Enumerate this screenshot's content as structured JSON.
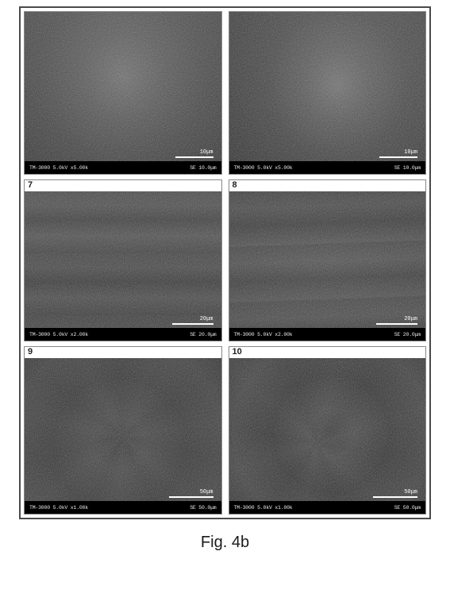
{
  "caption": "Fig. 4b",
  "frame_border_color": "#4a4a4a",
  "background_color": "#ffffff",
  "panels": [
    {
      "row": 1,
      "col": 1,
      "label": "",
      "bg_gradient": "radial-gradient(ellipse 70% 90% at 50% 40%, #6a6a6a 0%, #4e4e4e 30%, #3a3a3a 60%, #2a2a2a 100%)",
      "bg_overlay": "linear-gradient(180deg, rgba(90,90,90,0.25) 0%, rgba(30,30,30,0.2) 100%)",
      "infobar_left": "TM-3000  5.0kV  x5.00k",
      "infobar_right": "SE  10.0μm",
      "scalebar_width": 48,
      "scalebar_text": "10μm"
    },
    {
      "row": 1,
      "col": 2,
      "label": "",
      "bg_gradient": "radial-gradient(ellipse 65% 85% at 55% 45%, #707070 0%, #555 25%, #3c3c3c 55%, #2b2b2b 100%)",
      "bg_overlay": "linear-gradient(200deg, rgba(100,100,100,0.2) 0%, rgba(20,20,20,0.25) 100%)",
      "infobar_left": "TM-3000  5.0kV  x5.00k",
      "infobar_right": "SE  10.0μm",
      "scalebar_width": 48,
      "scalebar_text": "10μm"
    },
    {
      "row": 2,
      "col": 1,
      "label": "7",
      "bg_gradient": "repeating-linear-gradient(180deg, #3c3c3c 0px, #444 18px, #323232 36px, #4a4a4a 56px, #383838 78px)",
      "bg_overlay": "linear-gradient(180deg, rgba(70,70,70,0.15) 0%, rgba(20,20,20,0.3) 100%)",
      "infobar_left": "TM-3000  5.0kV  x2.00k",
      "infobar_right": "SE  20.0μm",
      "scalebar_width": 52,
      "scalebar_text": "20μm"
    },
    {
      "row": 2,
      "col": 2,
      "label": "8",
      "bg_gradient": "repeating-linear-gradient(178deg, #3a3a3a 0px, #464646 22px, #303030 44px, #484848 70px)",
      "bg_overlay": "radial-gradient(ellipse 120% 80% at 50% 50%, rgba(80,80,80,0.2) 0%, rgba(15,15,15,0.3) 100%)",
      "infobar_left": "TM-3000  5.0kV  x2.00k",
      "infobar_right": "SE  20.0μm",
      "scalebar_width": 52,
      "scalebar_text": "20μm"
    },
    {
      "row": 3,
      "col": 1,
      "label": "9",
      "bg_gradient": "radial-gradient(circle at 48% 55%, #2e2e2e 0%, #383838 20%, #2a2a2a 50%, #323232 80%, #262626 100%)",
      "bg_overlay": "repeating-conic-gradient(from 30deg at 50% 50%, rgba(80,80,80,0.12) 0deg, rgba(30,30,30,0.08) 25deg, rgba(70,70,70,0.12) 50deg)",
      "infobar_left": "TM-3000  5.0kV  x1.00k",
      "infobar_right": "SE  50.0μm",
      "scalebar_width": 56,
      "scalebar_text": "50μm"
    },
    {
      "row": 3,
      "col": 2,
      "label": "10",
      "bg_gradient": "radial-gradient(circle at 52% 48%, #303030 0%, #3a3a3a 18%, #282828 45%, #343434 75%, #242424 100%)",
      "bg_overlay": "repeating-conic-gradient(from 10deg at 45% 55%, rgba(85,85,85,0.1) 0deg, rgba(25,25,25,0.1) 30deg, rgba(75,75,75,0.1) 60deg)",
      "infobar_left": "TM-3000  5.0kV  x1.00k",
      "infobar_right": "SE  50.0μm",
      "scalebar_width": 56,
      "scalebar_text": "50μm"
    }
  ],
  "noise_svg": "url(\"data:image/svg+xml;utf8,<svg xmlns='http://www.w3.org/2000/svg' width='120' height='120'><filter id='n'><feTurbulence type='fractalNoise' baseFrequency='0.9' numOctaves='3' stitchTiles='stitch'/><feColorMatrix type='matrix' values='0 0 0 0 0.6  0 0 0 0 0.6  0 0 0 0 0.6  0 0 0 0.8 0'/></filter><rect width='100%25' height='100%25' filter='url(%23n)'/></svg>\")"
}
